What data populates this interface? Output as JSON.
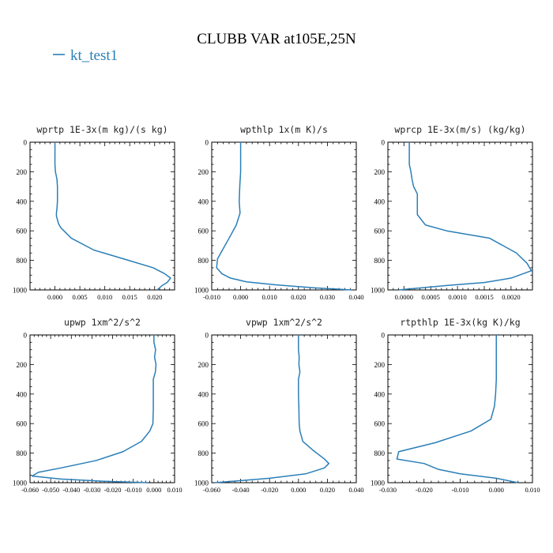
{
  "title": "CLUBB VAR at105E,25N",
  "legend": {
    "label": "kt_test1",
    "color": "#2a7fb8"
  },
  "panels": [
    {
      "title": "wprtp  1E-3x(m kg)/(s kg)",
      "xlim": [
        -0.005,
        0.024
      ],
      "xticks": [
        "0.000",
        "0.005",
        "0.010",
        "0.015",
        "0.020"
      ],
      "xtick_values": [
        0,
        0.005,
        0.01,
        0.015,
        0.02
      ],
      "ylim": [
        0,
        1000
      ],
      "yticks": [
        "0",
        "200",
        "400",
        "600",
        "800",
        "1000"
      ],
      "points": [
        [
          0.0,
          0
        ],
        [
          0.0,
          100
        ],
        [
          0.0,
          150
        ],
        [
          0.0001,
          200
        ],
        [
          0.0004,
          250
        ],
        [
          0.0005,
          300
        ],
        [
          0.0005,
          400
        ],
        [
          0.0004,
          450
        ],
        [
          0.0003,
          480
        ],
        [
          0.0003,
          500
        ],
        [
          0.0007,
          550
        ],
        [
          0.0012,
          580
        ],
        [
          0.0033,
          650
        ],
        [
          0.0078,
          730
        ],
        [
          0.0148,
          800
        ],
        [
          0.0197,
          850
        ],
        [
          0.022,
          890
        ],
        [
          0.0232,
          920
        ],
        [
          0.0225,
          950
        ],
        [
          0.0215,
          970
        ],
        [
          0.0205,
          1000
        ]
      ]
    },
    {
      "title": "wpthlp  1x(m K)/s",
      "xlim": [
        -0.01,
        0.04
      ],
      "xticks": [
        "-0.010",
        "0.000",
        "0.010",
        "0.020",
        "0.030",
        "0.040"
      ],
      "xtick_values": [
        -0.01,
        0.0,
        0.01,
        0.02,
        0.03,
        0.04
      ],
      "ylim": [
        0,
        1000
      ],
      "yticks": [
        "0",
        "200",
        "400",
        "600",
        "800",
        "1000"
      ],
      "points": [
        [
          0.0,
          0
        ],
        [
          0.0,
          100
        ],
        [
          0.0,
          200
        ],
        [
          -0.0003,
          300
        ],
        [
          -0.0005,
          400
        ],
        [
          -0.0002,
          480
        ],
        [
          -0.0015,
          560
        ],
        [
          -0.004,
          650
        ],
        [
          -0.006,
          720
        ],
        [
          -0.008,
          790
        ],
        [
          -0.0083,
          850
        ],
        [
          -0.0065,
          890
        ],
        [
          -0.0035,
          920
        ],
        [
          0.002,
          945
        ],
        [
          0.012,
          965
        ],
        [
          0.025,
          985
        ],
        [
          0.0385,
          1000
        ]
      ]
    },
    {
      "title": "wprcp  1E-3x(m/s) (kg/kg)",
      "xlim": [
        -0.0003,
        0.0024
      ],
      "xticks": [
        "0.0000",
        "0.0005",
        "0.0010",
        "0.0015",
        "0.0020"
      ],
      "xtick_values": [
        0.0,
        0.0005,
        0.001,
        0.0015,
        0.002
      ],
      "ylim": [
        0,
        1000
      ],
      "yticks": [
        "0",
        "200",
        "400",
        "600",
        "800",
        "1000"
      ],
      "points": [
        [
          0.0001,
          0
        ],
        [
          0.0001,
          100
        ],
        [
          0.0001,
          150
        ],
        [
          0.00013,
          200
        ],
        [
          0.00015,
          250
        ],
        [
          0.00018,
          300
        ],
        [
          0.00025,
          350
        ],
        [
          0.00025,
          400
        ],
        [
          0.00025,
          490
        ],
        [
          0.0004,
          560
        ],
        [
          0.0008,
          600
        ],
        [
          0.0016,
          650
        ],
        [
          0.0021,
          750
        ],
        [
          0.0023,
          820
        ],
        [
          0.00238,
          870
        ],
        [
          0.002,
          920
        ],
        [
          0.0015,
          950
        ],
        [
          0.0008,
          970
        ],
        [
          0.0002,
          990
        ],
        [
          -0.0001,
          1000
        ]
      ]
    },
    {
      "title": "upwp  1xm^2/s^2",
      "xlim": [
        -0.06,
        0.01
      ],
      "xticks": [
        "-0.060",
        "-0.050",
        "-0.040",
        "-0.030",
        "-0.020",
        "-0.010",
        "0.000",
        "0.010"
      ],
      "xtick_values": [
        -0.06,
        -0.05,
        -0.04,
        -0.03,
        -0.02,
        -0.01,
        0.0,
        0.01
      ],
      "ylim": [
        0,
        1000
      ],
      "yticks": [
        "0",
        "200",
        "400",
        "600",
        "800",
        "1000"
      ],
      "points": [
        [
          0.0,
          0
        ],
        [
          0.0,
          50
        ],
        [
          0.0008,
          100
        ],
        [
          0.0003,
          150
        ],
        [
          0.001,
          200
        ],
        [
          0.0007,
          250
        ],
        [
          -0.0003,
          300
        ],
        [
          -0.0003,
          400
        ],
        [
          -0.0003,
          500
        ],
        [
          -0.0005,
          600
        ],
        [
          -0.002,
          650
        ],
        [
          -0.006,
          720
        ],
        [
          -0.015,
          790
        ],
        [
          -0.028,
          850
        ],
        [
          -0.045,
          900
        ],
        [
          -0.056,
          930
        ],
        [
          -0.059,
          955
        ],
        [
          -0.045,
          975
        ],
        [
          -0.025,
          990
        ],
        [
          -0.003,
          1000
        ]
      ]
    },
    {
      "title": "vpwp  1xm^2/s^2",
      "xlim": [
        -0.06,
        0.04
      ],
      "xticks": [
        "-0.060",
        "-0.040",
        "-0.020",
        "0.000",
        "0.020",
        "0.040"
      ],
      "xtick_values": [
        -0.06,
        -0.04,
        -0.02,
        0.0,
        0.02,
        0.04
      ],
      "ylim": [
        0,
        1000
      ],
      "yticks": [
        "0",
        "200",
        "400",
        "600",
        "800",
        "1000"
      ],
      "points": [
        [
          0.0,
          0
        ],
        [
          0.0,
          100
        ],
        [
          0.0005,
          150
        ],
        [
          0.0003,
          200
        ],
        [
          0.001,
          250
        ],
        [
          0.0,
          300
        ],
        [
          0.0,
          400
        ],
        [
          0.0003,
          500
        ],
        [
          0.0005,
          600
        ],
        [
          0.001,
          650
        ],
        [
          0.003,
          720
        ],
        [
          0.01,
          780
        ],
        [
          0.018,
          840
        ],
        [
          0.021,
          870
        ],
        [
          0.018,
          900
        ],
        [
          0.005,
          940
        ],
        [
          -0.02,
          970
        ],
        [
          -0.045,
          990
        ],
        [
          -0.058,
          1000
        ]
      ]
    },
    {
      "title": "rtpthlp  1E-3x(kg K)/kg",
      "xlim": [
        -0.03,
        0.01
      ],
      "xticks": [
        "-0.030",
        "-0.020",
        "-0.010",
        "0.000",
        "0.010"
      ],
      "xtick_values": [
        -0.03,
        -0.02,
        -0.01,
        0.0,
        0.01
      ],
      "ylim": [
        0,
        1000
      ],
      "yticks": [
        "0",
        "200",
        "400",
        "600",
        "800",
        "1000"
      ],
      "points": [
        [
          0.0,
          0
        ],
        [
          0.0,
          100
        ],
        [
          0.0,
          200
        ],
        [
          0.0,
          300
        ],
        [
          -0.0002,
          400
        ],
        [
          -0.0005,
          480
        ],
        [
          -0.0015,
          570
        ],
        [
          -0.007,
          650
        ],
        [
          -0.017,
          730
        ],
        [
          -0.027,
          790
        ],
        [
          -0.0275,
          840
        ],
        [
          -0.02,
          870
        ],
        [
          -0.016,
          910
        ],
        [
          -0.01,
          940
        ],
        [
          0.0,
          970
        ],
        [
          0.006,
          1000
        ]
      ]
    }
  ],
  "chart_data": {
    "type": "line",
    "title": "CLUBB VAR at105E,25N",
    "legend_placement": "top-left",
    "series": [
      {
        "name": "kt_test1"
      }
    ],
    "grid": false
  }
}
